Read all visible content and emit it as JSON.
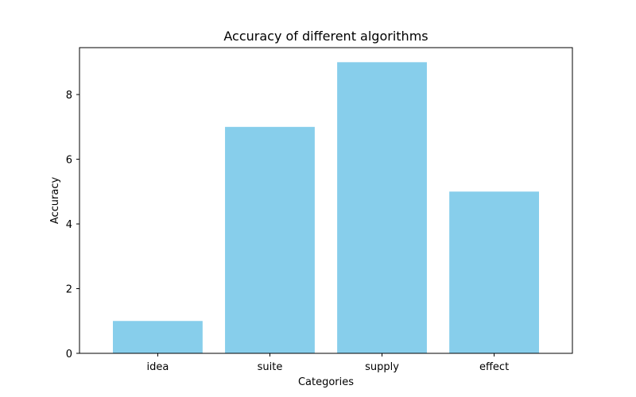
{
  "chart_data": {
    "type": "bar",
    "title": "Accuracy of different algorithms",
    "xlabel": "Categories",
    "ylabel": "Accuracy",
    "categories": [
      "idea",
      "suite",
      "supply",
      "effect"
    ],
    "values": [
      1,
      7,
      9,
      5
    ],
    "ylim": [
      0,
      9.45
    ],
    "yticks": [
      0,
      2,
      4,
      6,
      8
    ],
    "bar_color": "#87CEEB",
    "grid": false,
    "legend": "none"
  }
}
